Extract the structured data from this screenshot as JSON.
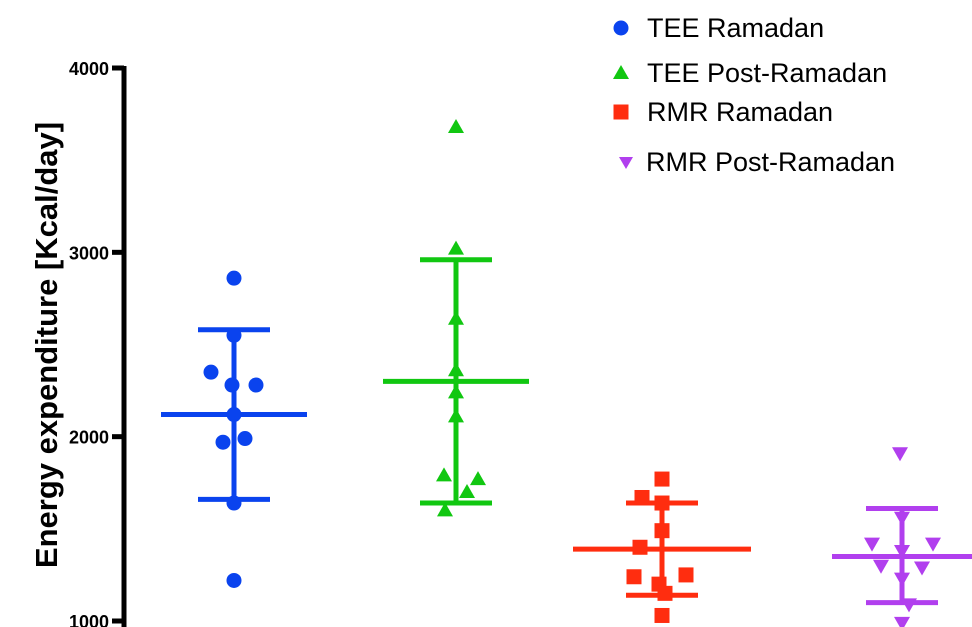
{
  "chart_data": {
    "type": "scatter",
    "ylabel": "Energy expenditure [Kcal/day]",
    "xlabel": "",
    "title": "",
    "ylim": [
      1000,
      4000
    ],
    "yticks": [
      "1000",
      "2000",
      "3000",
      "4000"
    ],
    "legend_position": "top-right",
    "series": [
      {
        "name": "TEE Ramadan",
        "marker": "circle",
        "color": "#0a43ee",
        "values": [
          2860,
          2550,
          2350,
          2280,
          2280,
          2120,
          1990,
          1970,
          1640,
          1220
        ],
        "mean": 2120,
        "sd_upper": 2580,
        "sd_lower": 1660
      },
      {
        "name": "TEE Post-Ramadan",
        "marker": "triangle-up",
        "color": "#11c711",
        "values": [
          3680,
          3020,
          2640,
          2360,
          2240,
          2110,
          1790,
          1770,
          1700,
          1600
        ],
        "mean": 2300,
        "sd_upper": 2960,
        "sd_lower": 1640
      },
      {
        "name": "RMR Ramadan",
        "marker": "square",
        "color": "#ff2d0f",
        "values": [
          1770,
          1670,
          1640,
          1490,
          1400,
          1240,
          1250,
          1200,
          1150,
          1030
        ],
        "mean": 1390,
        "sd_upper": 1640,
        "sd_lower": 1140
      },
      {
        "name": "RMR Post-Ramadan",
        "marker": "triangle-down",
        "color": "#b13fee",
        "values": [
          1910,
          1560,
          1420,
          1420,
          1380,
          1300,
          1290,
          1230,
          1090,
          990
        ],
        "mean": 1350,
        "sd_upper": 1610,
        "sd_lower": 1100
      }
    ]
  }
}
